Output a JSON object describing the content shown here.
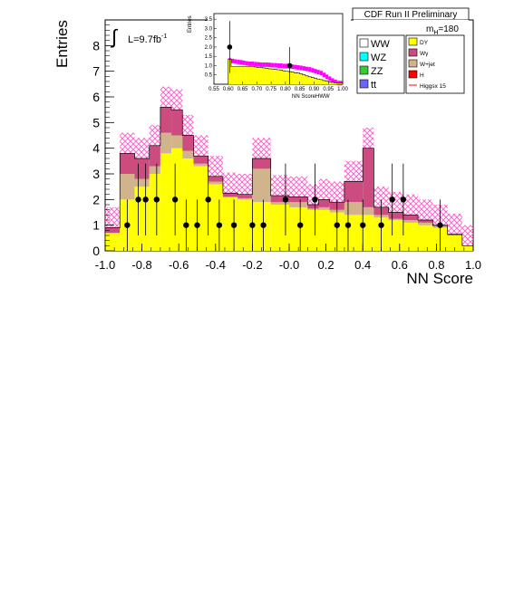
{
  "chart_data": {
    "type": "histogram",
    "header": "CDF Run II Preliminary",
    "luminosity_label": "L=9.7fb",
    "luminosity_sup": "-1",
    "mass_label": "m",
    "mass_sub": "H",
    "mass_value": "=180",
    "ylabel": "Entries",
    "xlabel": "NN Score",
    "xlim": [
      -1.0,
      1.0
    ],
    "ylim": [
      0,
      9
    ],
    "x_ticks": [
      "-1.0",
      "-0.8",
      "-0.6",
      "-0.4",
      "-0.2",
      "-0.0",
      "0.2",
      "0.4",
      "0.6",
      "0.8",
      "1.0"
    ],
    "y_ticks": [
      "0",
      "1",
      "2",
      "3",
      "4",
      "5",
      "6",
      "7",
      "8"
    ],
    "colors": {
      "DY": "#ffff00",
      "Wgamma": "#cc4c80",
      "Wjet": "#d2b48c",
      "signal": "#ff00ff",
      "hatch": "#ff66cc",
      "H": "#ff0000"
    },
    "bin_edges": [
      -1.0,
      -0.92,
      -0.84,
      -0.76,
      -0.7,
      -0.64,
      -0.58,
      -0.52,
      -0.44,
      -0.36,
      -0.28,
      -0.2,
      -0.1,
      0.0,
      0.1,
      0.16,
      0.22,
      0.3,
      0.4,
      0.46,
      0.54,
      0.62,
      0.7,
      0.78,
      0.86,
      0.94,
      1.0
    ],
    "series": [
      {
        "name": "DY",
        "values": [
          0.7,
          2.0,
          2.5,
          3.0,
          3.8,
          4.0,
          3.6,
          3.3,
          2.6,
          2.1,
          2.0,
          1.9,
          1.8,
          1.7,
          1.6,
          1.6,
          1.5,
          1.4,
          1.4,
          1.3,
          1.2,
          1.1,
          1.0,
          0.9,
          0.6,
          0.2
        ]
      },
      {
        "name": "Wγ",
        "values": [
          0.2,
          0.8,
          0.8,
          0.8,
          1.0,
          1.0,
          0.6,
          0.3,
          0.2,
          0.15,
          0.15,
          0.4,
          0.25,
          0.2,
          0.15,
          0.3,
          0.3,
          0.8,
          2.3,
          0.3,
          0.25,
          0.2,
          0.1,
          0.05,
          0.05,
          0.0
        ]
      },
      {
        "name": "W+jet",
        "values": [
          0.0,
          1.0,
          0.3,
          0.3,
          0.8,
          0.5,
          0.3,
          0.1,
          0.1,
          0.0,
          0.05,
          1.3,
          0.1,
          0.2,
          0.05,
          0.1,
          0.1,
          0.5,
          0.3,
          0.1,
          0.05,
          0.1,
          0.1,
          0.05,
          0.0,
          0.0
        ]
      }
    ],
    "signal_hatch_offset": 0.8,
    "data_points": {
      "x": [
        -0.88,
        -0.82,
        -0.78,
        -0.72,
        -0.62,
        -0.56,
        -0.5,
        -0.44,
        -0.38,
        -0.3,
        -0.2,
        -0.14,
        -0.02,
        0.06,
        0.14,
        0.26,
        0.32,
        0.4,
        0.5,
        0.56,
        0.62,
        0.82
      ],
      "y": [
        1,
        2,
        2,
        2,
        2,
        1,
        1,
        2,
        1,
        1,
        1,
        1,
        2,
        1,
        2,
        1,
        1,
        1,
        1,
        2,
        2,
        1
      ],
      "err": [
        1.0,
        1.4,
        1.4,
        1.4,
        1.4,
        1.0,
        1.0,
        1.4,
        1.0,
        1.0,
        1.0,
        1.0,
        1.4,
        1.0,
        1.4,
        1.0,
        1.0,
        1.0,
        1.0,
        1.4,
        1.4,
        1.0
      ]
    },
    "legend": {
      "col1": [
        "WW",
        "WZ",
        "ZZ",
        "tt"
      ],
      "col1_colors": [
        "#ffffff",
        "#00ffff",
        "#33cc33",
        "#6666ff"
      ],
      "col2": [
        "DY",
        "Wγ",
        "W+jet",
        "H",
        "Higgsx 15"
      ],
      "col2_colors": [
        "#ffff00",
        "#cc4c80",
        "#d2b48c",
        "#ff0000",
        "line"
      ]
    },
    "inset": {
      "ylabel": "Entries",
      "xlabel": "NN ScoreHWW",
      "xlim": [
        0.55,
        1.0
      ],
      "ylim": [
        0,
        3.8
      ],
      "x_ticks": [
        "0.55",
        "0.60",
        "0.65",
        "0.70",
        "0.75",
        "0.80",
        "0.85",
        "0.90",
        "0.95",
        "1.00"
      ],
      "y_ticks": [
        "0.5",
        "1.0",
        "1.5",
        "2.0",
        "2.5",
        "3.0",
        "3.5"
      ],
      "bin_edges": [
        0.55,
        0.6,
        0.61,
        0.62,
        0.63,
        0.64,
        0.65,
        0.66,
        0.67,
        0.68,
        0.69,
        0.7,
        0.71,
        0.72,
        0.73,
        0.74,
        0.75,
        0.76,
        0.77,
        0.78,
        0.79,
        0.8,
        0.81,
        0.82,
        0.83,
        0.84,
        0.85,
        0.86,
        0.87,
        0.88,
        0.89,
        0.9,
        0.91,
        0.92,
        0.93,
        0.94,
        0.95,
        0.96,
        0.97,
        0.98,
        1.0
      ],
      "values": [
        0.0,
        1.35,
        0.95,
        0.95,
        0.95,
        0.95,
        0.95,
        0.95,
        0.95,
        0.95,
        0.93,
        0.9,
        0.9,
        0.88,
        0.85,
        0.83,
        0.82,
        0.8,
        0.78,
        0.75,
        0.72,
        0.7,
        0.68,
        0.65,
        0.62,
        0.6,
        0.55,
        0.5,
        0.45,
        0.4,
        0.36,
        0.32,
        0.28,
        0.25,
        0.2,
        0.16,
        0.12,
        0.1,
        0.08,
        0.05
      ],
      "signal_band": [
        0.0,
        1.28,
        1.25,
        1.22,
        1.2,
        1.18,
        1.15,
        1.12,
        1.1,
        1.1,
        1.08,
        1.07,
        1.05,
        1.05,
        1.05,
        1.04,
        1.02,
        1.02,
        1.0,
        1.0,
        0.98,
        0.98,
        0.96,
        0.94,
        0.92,
        0.9,
        0.88,
        0.85,
        0.82,
        0.8,
        0.75,
        0.7,
        0.65,
        0.6,
        0.5,
        0.4,
        0.3,
        0.2,
        0.12,
        0.06
      ],
      "data_points": {
        "x": [
          0.605,
          0.815
        ],
        "y": [
          2.0,
          1.0
        ],
        "err": [
          1.4,
          1.0
        ]
      }
    }
  }
}
